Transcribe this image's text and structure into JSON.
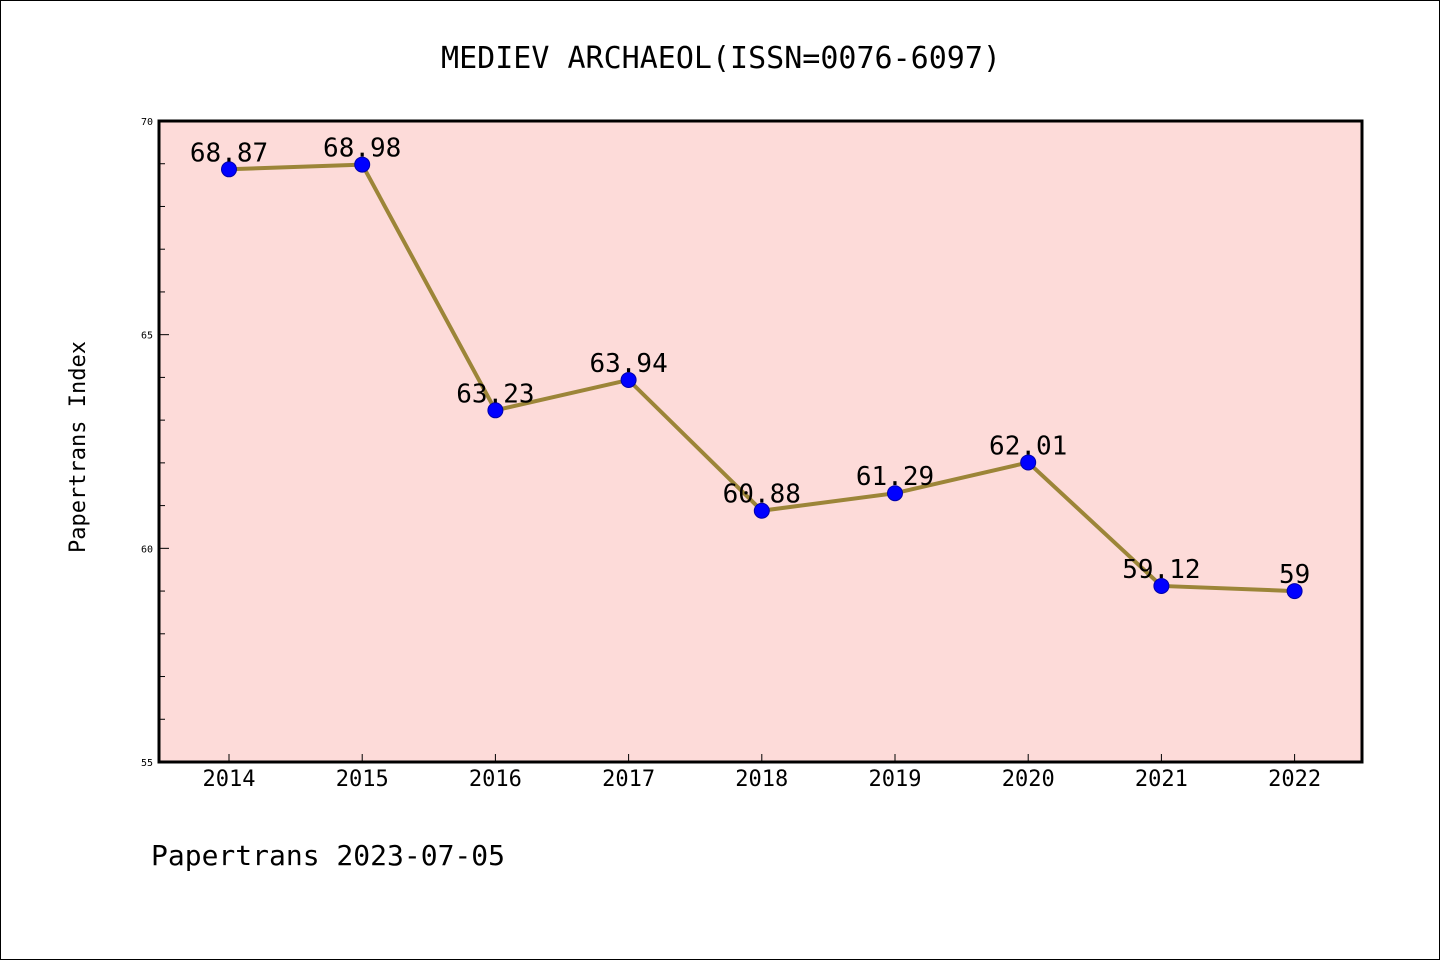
{
  "chart_data": {
    "type": "line",
    "title": "MEDIEV ARCHAEOL(ISSN=0076-6097)",
    "xlabel": "",
    "ylabel": "Papertrans Index",
    "categories": [
      "2014",
      "2015",
      "2016",
      "2017",
      "2018",
      "2019",
      "2020",
      "2021",
      "2022"
    ],
    "series": [
      {
        "name": "Papertrans Index",
        "values": [
          68.87,
          68.98,
          63.23,
          63.94,
          60.88,
          61.29,
          62.01,
          59.12,
          59
        ],
        "labels": [
          "68.87",
          "68.98",
          "63.23",
          "63.94",
          "60.88",
          "61.29",
          "62.01",
          "59.12",
          "59"
        ]
      }
    ],
    "ylim": [
      55,
      70
    ],
    "yticks": [
      "55",
      "60",
      "65",
      "70"
    ],
    "grid": false,
    "legend": "none",
    "footer": "Papertrans 2023-07-05"
  },
  "colors": {
    "plot_background": "#FDDBD9",
    "line": "#9C8538",
    "marker": "#0000FF",
    "marker_edge": "#0000AA",
    "axis": "#000000"
  }
}
